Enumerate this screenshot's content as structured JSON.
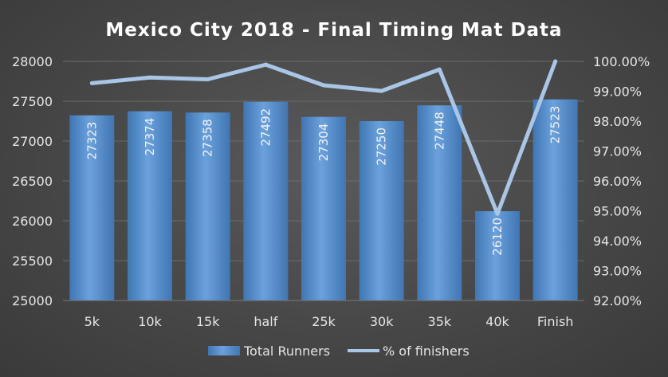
{
  "chart_data": {
    "type": "bar+line",
    "title": "Mexico City 2018 - Final Timing Mat Data",
    "categories": [
      "5k",
      "10k",
      "15k",
      "half",
      "25k",
      "30k",
      "35k",
      "40k",
      "Finish"
    ],
    "series": [
      {
        "name": "Total Runners",
        "type": "bar",
        "axis": "left",
        "values": [
          27323,
          27374,
          27358,
          27492,
          27304,
          27250,
          27448,
          26120,
          27523
        ],
        "data_labels": [
          "27323",
          "27374",
          "27358",
          "27492",
          "27304",
          "27250",
          "27448",
          "26120",
          "27523"
        ]
      },
      {
        "name": "% of finishers",
        "type": "line",
        "axis": "right",
        "values": [
          99.27,
          99.46,
          99.4,
          99.89,
          99.2,
          99.01,
          99.73,
          94.9,
          100.0
        ]
      }
    ],
    "y_left": {
      "range": [
        25000,
        28000
      ],
      "ticks": [
        "25000",
        "25500",
        "26000",
        "26500",
        "27000",
        "27500",
        "28000"
      ]
    },
    "y_right": {
      "range": [
        92,
        100
      ],
      "ticks": [
        "92.00%",
        "93.00%",
        "94.00%",
        "95.00%",
        "96.00%",
        "97.00%",
        "98.00%",
        "99.00%",
        "100.00%"
      ]
    },
    "grid": true,
    "legend_position": "bottom",
    "colors": {
      "bar": "#5b93cf",
      "bar_dark": "#3f76b3",
      "line": "#a9c6e6",
      "grid": "#6b6b6b"
    }
  }
}
